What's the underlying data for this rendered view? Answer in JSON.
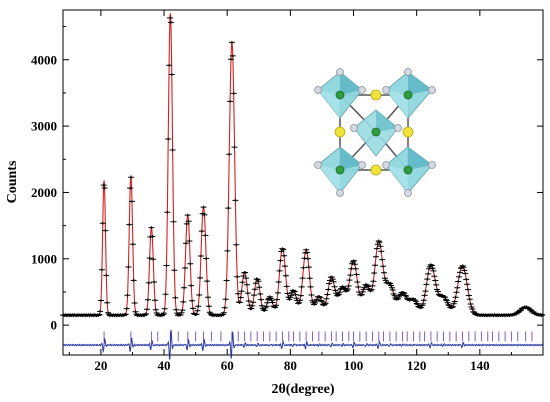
{
  "chart_data": {
    "type": "scatter",
    "title": "",
    "xlabel": "2θ(degree)",
    "ylabel": "Counts",
    "xlim": [
      8,
      160
    ],
    "ylim": [
      -450,
      4750
    ],
    "x_ticks": [
      20,
      40,
      60,
      80,
      100,
      120,
      140
    ],
    "y_ticks": [
      0,
      1000,
      2000,
      3000,
      4000
    ],
    "x_tick_labels": [
      "20",
      "40",
      "60",
      "80",
      "100",
      "120",
      "140"
    ],
    "y_tick_labels": [
      "0",
      "1000",
      "2000",
      "3000",
      "4000"
    ],
    "grid": false,
    "background_level": 150,
    "peaks": [
      {
        "x": 21.0,
        "y": 2180
      },
      {
        "x": 29.5,
        "y": 2240
      },
      {
        "x": 36.0,
        "y": 1470
      },
      {
        "x": 42.0,
        "y": 4700
      },
      {
        "x": 47.5,
        "y": 1660
      },
      {
        "x": 52.5,
        "y": 1780
      },
      {
        "x": 61.5,
        "y": 4260
      },
      {
        "x": 65.5,
        "y": 800
      },
      {
        "x": 69.5,
        "y": 700
      },
      {
        "x": 73.5,
        "y": 420
      },
      {
        "x": 77.5,
        "y": 1160
      },
      {
        "x": 81.0,
        "y": 520
      },
      {
        "x": 85.0,
        "y": 1130
      },
      {
        "x": 89.0,
        "y": 430
      },
      {
        "x": 93.0,
        "y": 720
      },
      {
        "x": 96.5,
        "y": 560
      },
      {
        "x": 100.0,
        "y": 960
      },
      {
        "x": 104.0,
        "y": 600
      },
      {
        "x": 108.0,
        "y": 1250
      },
      {
        "x": 111.5,
        "y": 600
      },
      {
        "x": 115.5,
        "y": 480
      },
      {
        "x": 119.0,
        "y": 380
      },
      {
        "x": 124.5,
        "y": 900
      },
      {
        "x": 128.5,
        "y": 420
      },
      {
        "x": 134.5,
        "y": 890
      },
      {
        "x": 154.5,
        "y": 270
      }
    ],
    "difference_offset": -300,
    "bragg_tick_level": -170,
    "bragg_positions": [
      21,
      29.5,
      36,
      38,
      42,
      44.5,
      47.5,
      50,
      52.5,
      55,
      58,
      61.5,
      63.5,
      65.5,
      67.5,
      69.5,
      71.5,
      73.5,
      75.5,
      77.5,
      79.5,
      81,
      83,
      85,
      87,
      89,
      91,
      93,
      94.5,
      96.5,
      98.5,
      100,
      102,
      104,
      106,
      108,
      109.5,
      111.5,
      113.5,
      115.5,
      117,
      119,
      121,
      122.5,
      124.5,
      126.5,
      128.5,
      130.5,
      132.5,
      134.5,
      136.5,
      138.5,
      140.5,
      142.5,
      144,
      146,
      148,
      150,
      152,
      154.5,
      156.5
    ],
    "colors": {
      "observed": "#000000",
      "calculated": "#d42020",
      "bragg_ticks": "#8a5cb8",
      "difference": "#2b3aa0",
      "polyhedra": "#7fd0da",
      "yellow_atoms": "#f2e33a",
      "green_atoms": "#2f9e3f",
      "grey_atoms": "#c8ccd4"
    }
  }
}
